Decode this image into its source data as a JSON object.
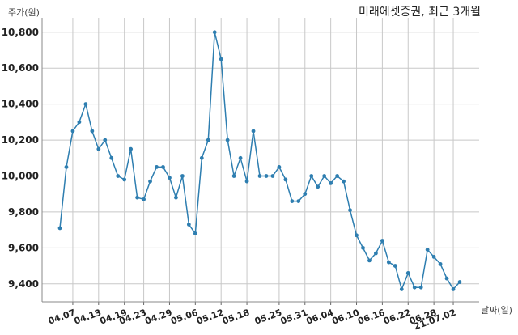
{
  "chart_data": {
    "type": "line",
    "title": "미래에셋증권, 최근 3개월",
    "xlabel": "날짜(일)",
    "ylabel": "주가(원)",
    "ylim": [
      9300,
      10880
    ],
    "yticks": [
      9400,
      9600,
      9800,
      10000,
      10200,
      10400,
      10600,
      10800
    ],
    "ytick_labels": [
      "9,400",
      "9,600",
      "9,800",
      "10,000",
      "10,200",
      "10,400",
      "10,600",
      "10,800"
    ],
    "grid": true,
    "color": "#2e7eb0",
    "x_tick_labels": [
      "04.07",
      "04.13",
      "04.19",
      "04.23",
      "04.29",
      "05.06",
      "05.12",
      "05.18",
      "05.25",
      "05.31",
      "06.04",
      "06.10",
      "06.16",
      "06.22",
      "06.28",
      "21.07.02"
    ],
    "x_tick_index": [
      2,
      6,
      10,
      13,
      17,
      21,
      25,
      29,
      34,
      38,
      42,
      46,
      50,
      54,
      58,
      61
    ],
    "values": [
      9710,
      10050,
      10250,
      10300,
      10400,
      10250,
      10150,
      10200,
      10100,
      10000,
      9980,
      10150,
      9880,
      9870,
      9970,
      10050,
      10050,
      9990,
      9880,
      10000,
      9730,
      9680,
      10100,
      10200,
      10800,
      10650,
      10200,
      10000,
      10100,
      9970,
      10250,
      10000,
      10000,
      10000,
      10050,
      9980,
      9860,
      9860,
      9900,
      10000,
      9940,
      10000,
      9960,
      10000,
      9970,
      9810,
      9670,
      9600,
      9530,
      9570,
      9640,
      9520,
      9500,
      9370,
      9460,
      9380,
      9380,
      9590,
      9550,
      9510,
      9430,
      9370,
      9410
    ]
  }
}
